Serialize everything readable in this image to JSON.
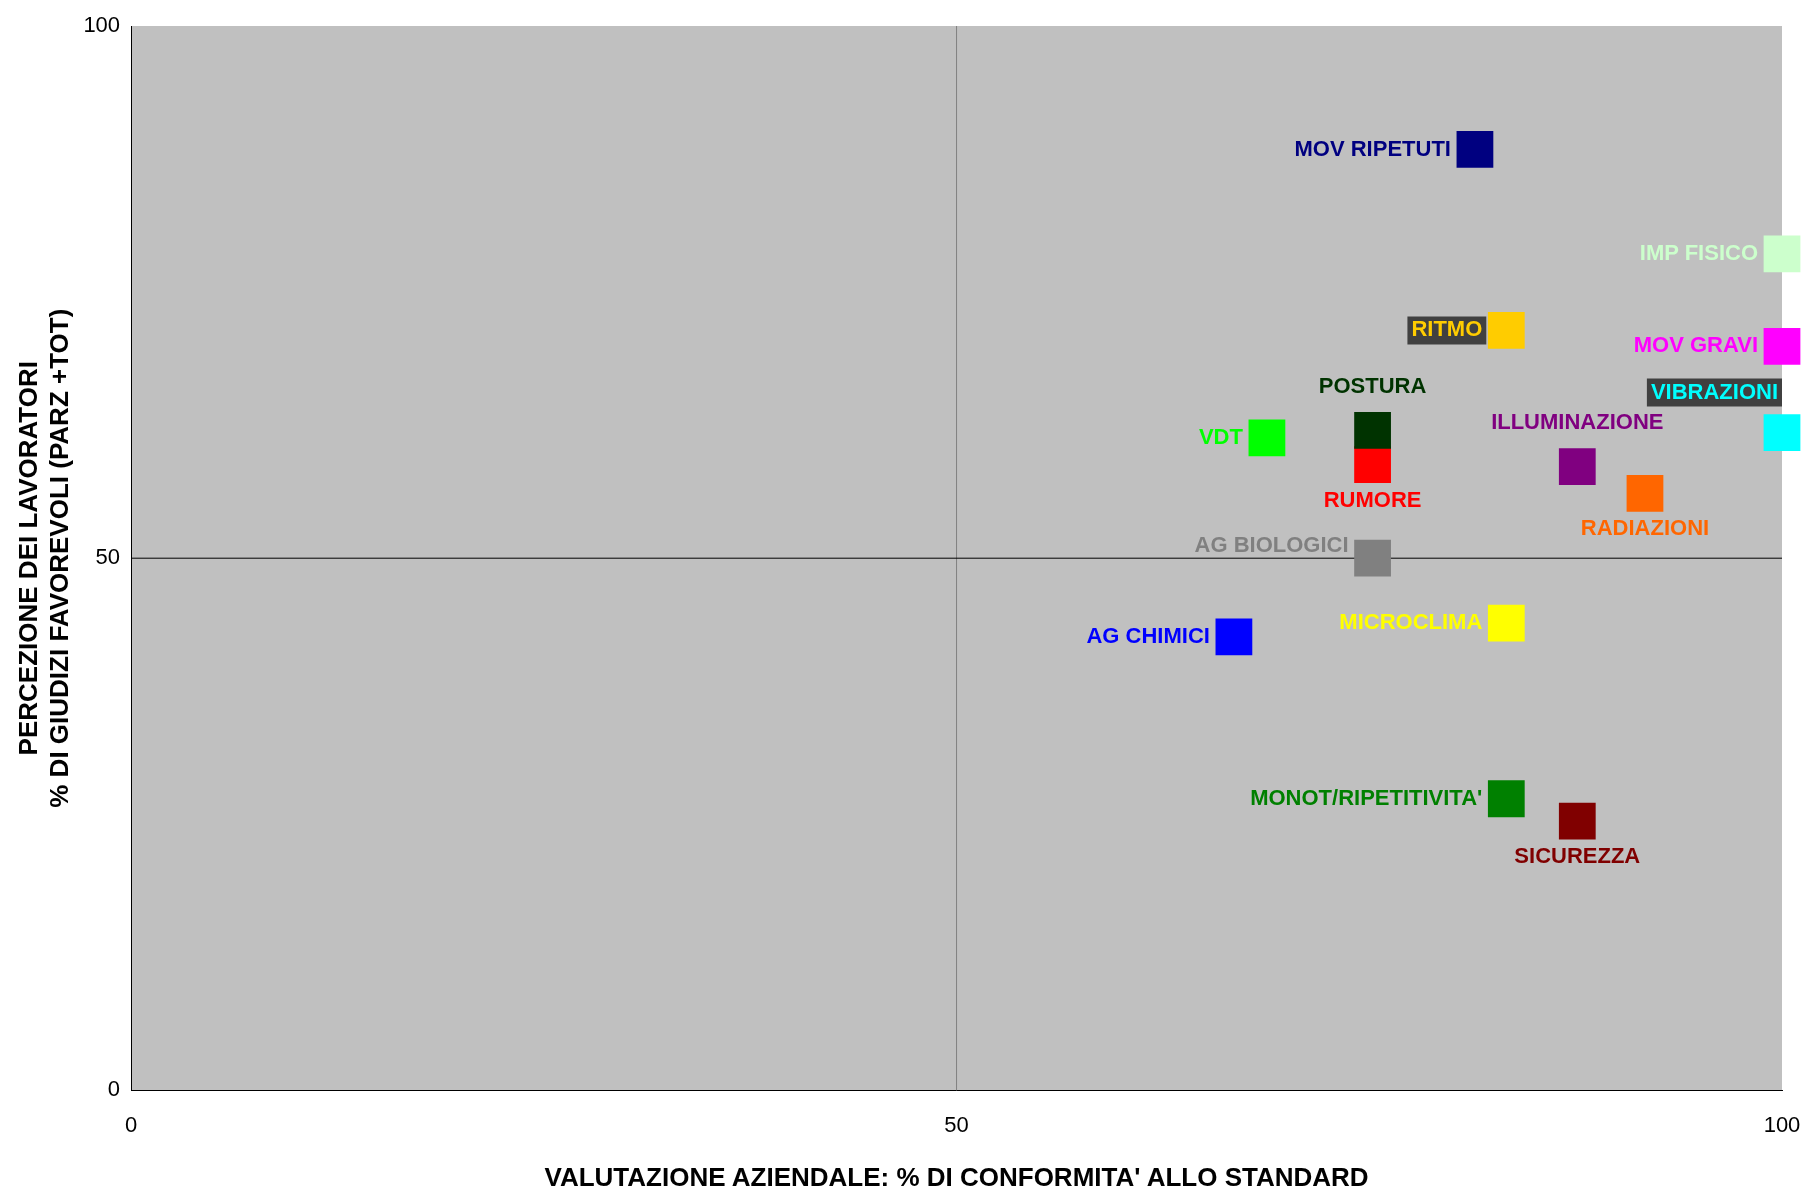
{
  "chart_data": {
    "type": "scatter",
    "xlabel": "VALUTAZIONE AZIENDALE: % DI CONFORMITA' ALLO STANDARD",
    "ylabel": "PERCEZIONE DEI LAVORATORI\n% DI GIUDIZI FAVOREVOLI (PARZ +TOT)",
    "xlim": [
      0,
      100
    ],
    "ylim": [
      0,
      100
    ],
    "xticks": [
      0,
      50,
      100
    ],
    "yticks": [
      0,
      50,
      100
    ],
    "ref_lines": [
      {
        "axis": "x",
        "value": 50,
        "color": "#808080"
      },
      {
        "axis": "y",
        "value": 50,
        "color": "#000000"
      }
    ],
    "legend": false,
    "marker": "square",
    "series": [
      {
        "name": "MOV RIPETUTI",
        "color": "#000080",
        "x": [
          81.4
        ],
        "values": [
          88.4
        ]
      },
      {
        "name": "IMP FISICO",
        "color": "#ccffcc",
        "x": [
          100
        ],
        "values": [
          78.6
        ]
      },
      {
        "name": "RITMO",
        "color": "#ffcc00",
        "x": [
          83.3
        ],
        "values": [
          71.4
        ]
      },
      {
        "name": "MOV GRAVI",
        "color": "#ff00ff",
        "x": [
          100
        ],
        "values": [
          69.9
        ]
      },
      {
        "name": "VIBRAZIONI",
        "color": "#00ffff",
        "x": [
          100
        ],
        "values": [
          61.8
        ]
      },
      {
        "name": "POSTURA",
        "color": "#003300",
        "x": [
          75.2
        ],
        "values": [
          62.0
        ]
      },
      {
        "name": "RUMORE",
        "color": "#ff0000",
        "x": [
          75.2
        ],
        "values": [
          58.8
        ]
      },
      {
        "name": "VDT",
        "color": "#00ff00",
        "x": [
          68.8
        ],
        "values": [
          61.3
        ]
      },
      {
        "name": "ILLUMINAZIONE",
        "color": "#800080",
        "x": [
          87.6
        ],
        "values": [
          58.6
        ]
      },
      {
        "name": "RADIAZIONI",
        "color": "#ff6600",
        "x": [
          91.7
        ],
        "values": [
          56.1
        ]
      },
      {
        "name": "AG BIOLOGICI",
        "color": "#808080",
        "x": [
          75.2
        ],
        "values": [
          50
        ]
      },
      {
        "name": "MICROCLIMA",
        "color": "#ffff00",
        "x": [
          83.3
        ],
        "values": [
          43.9
        ]
      },
      {
        "name": "AG CHIMICI",
        "color": "#0000ff",
        "x": [
          66.8
        ],
        "values": [
          42.6
        ]
      },
      {
        "name": "MONOT/RIPETITIVITA'",
        "color": "#008000",
        "x": [
          83.3
        ],
        "values": [
          27.4
        ]
      },
      {
        "name": "SICUREZZA",
        "color": "#800000",
        "x": [
          87.6
        ],
        "values": [
          25.3
        ]
      }
    ]
  }
}
